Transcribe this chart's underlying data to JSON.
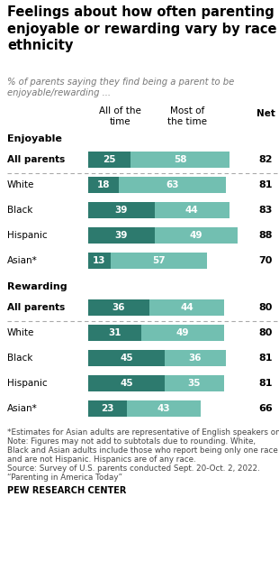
{
  "title": "Feelings about how often parenting is\nenjoyable or rewarding vary by race and\nethnicity",
  "subtitle": "% of parents saying they find being a parent to be\nenjoyable/rewarding ...",
  "col_header1": "All of the\ntime",
  "col_header2": "Most of\nthe time",
  "col_header3": "Net",
  "color_dark": "#2d7a6e",
  "color_light": "#72bfb1",
  "enjoyable_label": "Enjoyable",
  "rewarding_label": "Rewarding",
  "enjoyable_rows": [
    {
      "name": "All parents",
      "v1": 25,
      "v2": 58,
      "net": 82,
      "bold": true
    },
    {
      "name": "White",
      "v1": 18,
      "v2": 63,
      "net": 81,
      "bold": false
    },
    {
      "name": "Black",
      "v1": 39,
      "v2": 44,
      "net": 83,
      "bold": false
    },
    {
      "name": "Hispanic",
      "v1": 39,
      "v2": 49,
      "net": 88,
      "bold": false
    },
    {
      "name": "Asian*",
      "v1": 13,
      "v2": 57,
      "net": 70,
      "bold": false
    }
  ],
  "rewarding_rows": [
    {
      "name": "All parents",
      "v1": 36,
      "v2": 44,
      "net": 80,
      "bold": true
    },
    {
      "name": "White",
      "v1": 31,
      "v2": 49,
      "net": 80,
      "bold": false
    },
    {
      "name": "Black",
      "v1": 45,
      "v2": 36,
      "net": 81,
      "bold": false
    },
    {
      "name": "Hispanic",
      "v1": 45,
      "v2": 35,
      "net": 81,
      "bold": false
    },
    {
      "name": "Asian*",
      "v1": 23,
      "v2": 43,
      "net": 66,
      "bold": false
    }
  ],
  "footnote_lines": [
    "*Estimates for Asian adults are representative of English speakers only.",
    "Note: Figures may not add to subtotals due to rounding. White,",
    "Black and Asian adults include those who report being only one race",
    "and are not Hispanic. Hispanics are of any race.",
    "Source: Survey of U.S. parents conducted Sept. 20-Oct. 2, 2022.",
    "“Parenting in America Today”"
  ],
  "source_label": "PEW RESEARCH CENTER",
  "bar_max": 90,
  "fig_width": 3.1,
  "fig_height": 6.22,
  "dpi": 100
}
